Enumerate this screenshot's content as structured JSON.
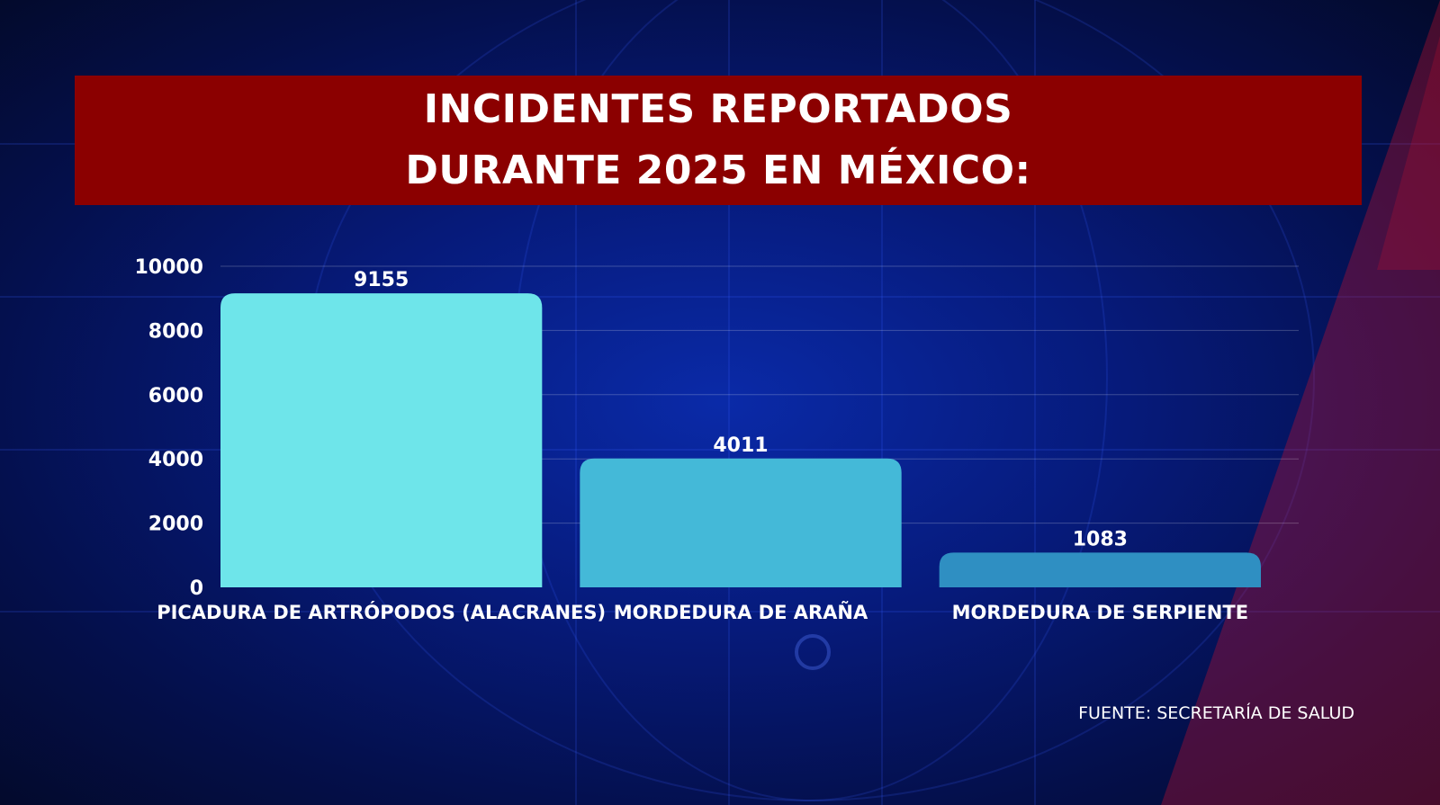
{
  "title_lines": [
    "INCIDENTES REPORTADOS",
    "DURANTE 2025 EN MÉXICO:"
  ],
  "source": "FUENTE: SECRETARÍA DE SALUD",
  "colors": {
    "banner": "#8b0000",
    "accent_stripe": "#c8102e",
    "bars": [
      "#6ee5ea",
      "#44b9d8",
      "#2f8fc2"
    ]
  },
  "chart_data": {
    "type": "bar",
    "categories": [
      "PICADURA DE ARTRÓPODOS (ALACRANES)",
      "MORDEDURA DE ARAÑA",
      "MORDEDURA DE SERPIENTE"
    ],
    "values": [
      9155,
      4011,
      1083
    ],
    "ylim": [
      0,
      10000
    ],
    "yticks": [
      0,
      2000,
      4000,
      6000,
      8000,
      10000
    ],
    "grid": true,
    "legend": "none"
  }
}
